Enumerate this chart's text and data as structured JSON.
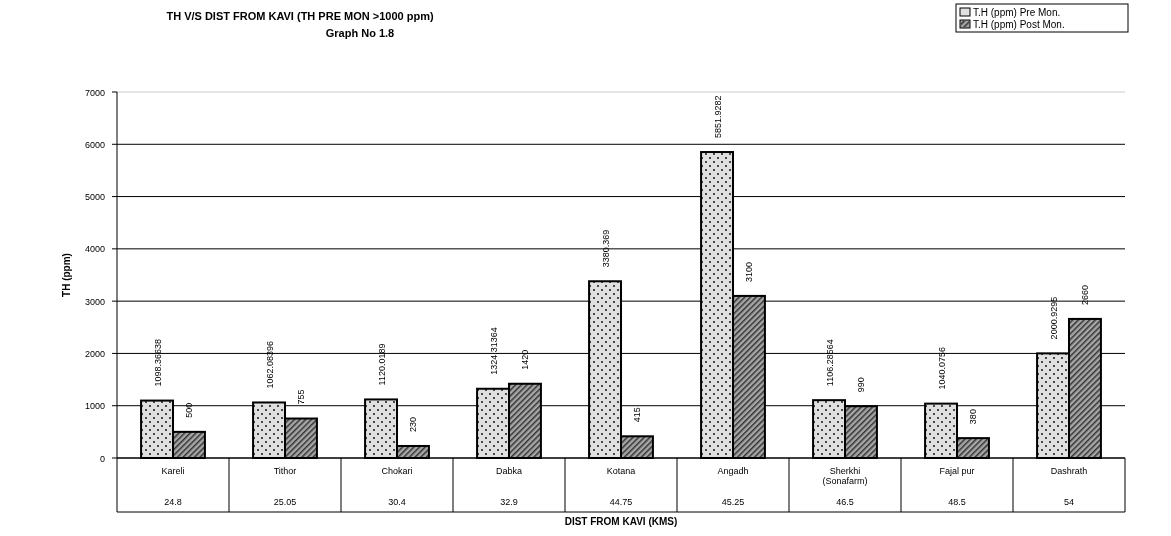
{
  "chart_data": {
    "type": "bar",
    "title": "TH V/S DIST FROM KAVI (TH PRE MON >1000 ppm)",
    "subtitle": "Graph No 1.8",
    "xlabel": "DIST FROM KAVI (KMS)",
    "ylabel": "TH (ppm)",
    "categories": [
      "Kareli",
      "Tithor",
      "Chokari",
      "Dabka",
      "Kotana",
      "Angadh",
      "Sherkhi\n(Sonafarm)",
      "Fajal pur",
      "Dashrath"
    ],
    "series": [
      {
        "name": "T.H (ppm) Pre Mon.",
        "color": "#e0e0e0",
        "values": [
          1098.36638,
          1062.08396,
          1120.0189,
          1324.31364,
          3380.369,
          5851.9282,
          1106.28564,
          1040.0756,
          2000.9295
        ]
      },
      {
        "name": "T.H (ppm) Post Mon.",
        "color": "#a6a6a6",
        "values": [
          500,
          755,
          230,
          1420,
          415,
          3100,
          990,
          380,
          2660
        ]
      }
    ],
    "annotations": [
      "24.8",
      "25.05",
      "30.4",
      "32.9",
      "44.75",
      "45.25",
      "46.5",
      "48.5",
      "54"
    ],
    "ylim": [
      0,
      7000
    ],
    "yticks": [
      0,
      1000,
      2000,
      3000,
      4000,
      5000,
      6000,
      7000
    ],
    "grid": "y",
    "legend": "top right",
    "data_labels": true
  }
}
